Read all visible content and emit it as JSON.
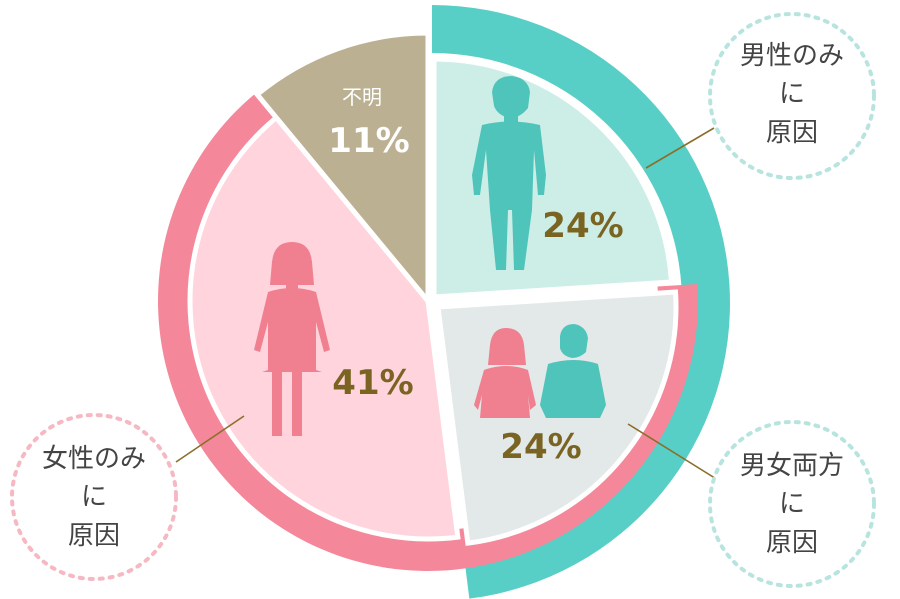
{
  "chart_data": {
    "type": "pie",
    "slices": [
      {
        "key": "male",
        "label": "男性のみに原因",
        "value": 24,
        "display": "24%",
        "color": "#cdeee7",
        "ring_color": "#58cfc6"
      },
      {
        "key": "both",
        "label": "男女両方に原因",
        "value": 24,
        "display": "24%",
        "color": "#e3e8e8",
        "ring_color": "#f4889a"
      },
      {
        "key": "female",
        "label": "女性のみに原因",
        "value": 41,
        "display": "41%",
        "color": "#ffd4dc",
        "ring_color": "#f4889a"
      },
      {
        "key": "unknown",
        "label": "不明",
        "value": 11,
        "display": "11%",
        "color": "#bcb093"
      }
    ],
    "colors": {
      "male_ring": "#58cfc6",
      "female_ring": "#f4889a",
      "figure_teal": "#4fc4bb",
      "figure_pink": "#f07f90",
      "percent_text": "#7a6422",
      "leader_line": "#8a6e2a"
    }
  },
  "callouts": {
    "male": [
      "男性のみ",
      "に",
      "原因"
    ],
    "both": [
      "男女両方",
      "に",
      "原因"
    ],
    "female": [
      "女性のみ",
      "に",
      "原因"
    ]
  },
  "unknown_label": "不明"
}
